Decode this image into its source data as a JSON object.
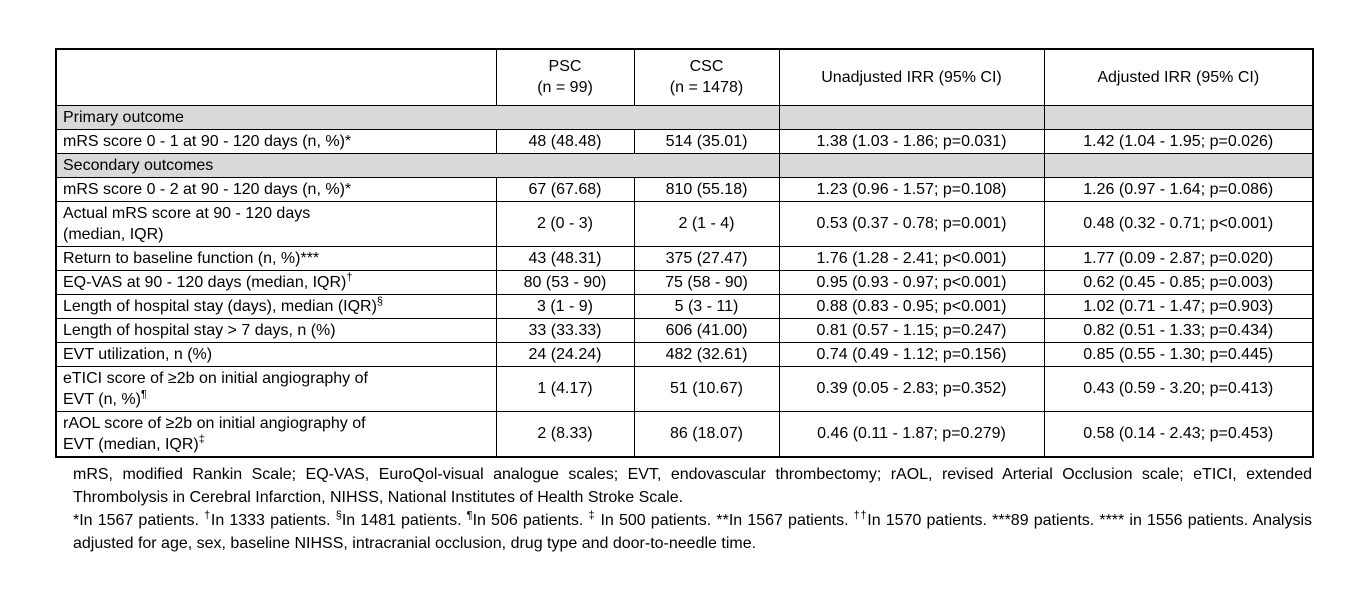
{
  "colors": {
    "section_fill": "#d9d9d9",
    "border": "#000000",
    "background": "#ffffff"
  },
  "table": {
    "header": {
      "label_col": "",
      "psc_line1": "PSC",
      "psc_line2": "(n = 99)",
      "csc_line1": "CSC",
      "csc_line2": "(n = 1478)",
      "unadjusted": "Unadjusted IRR (95% CI)",
      "adjusted": "Adjusted IRR (95% CI)"
    },
    "rows": [
      {
        "type": "section",
        "label": "Primary outcome"
      },
      {
        "type": "data",
        "label": "mRS score 0 - 1 at 90 - 120 days (n, %)*",
        "label_sup": "",
        "psc": "48 (48.48)",
        "csc": "514 (35.01)",
        "unadjusted": "1.38 (1.03 - 1.86; p=0.031)",
        "adjusted": "1.42 (1.04 - 1.95; p=0.026)"
      },
      {
        "type": "section",
        "label": "Secondary outcomes"
      },
      {
        "type": "data",
        "label": "mRS score 0 - 2 at 90 - 120 days (n, %)*",
        "label_sup": "",
        "psc": "67 (67.68)",
        "csc": "810 (55.18)",
        "unadjusted": "1.23 (0.96 - 1.57; p=0.108)",
        "adjusted": "1.26 (0.97 - 1.64; p=0.086)"
      },
      {
        "type": "data",
        "label": "Actual mRS score at 90 - 120 days\n(median, IQR)",
        "label_sup": "",
        "psc": "2 (0 - 3)",
        "csc": "2 (1 - 4)",
        "unadjusted": "0.53 (0.37 - 0.78; p=0.001)",
        "adjusted": "0.48 (0.32 - 0.71; p<0.001)"
      },
      {
        "type": "data",
        "label": "Return to baseline function (n, %)***",
        "label_sup": "",
        "psc": "43 (48.31)",
        "csc": "375 (27.47)",
        "unadjusted": "1.76 (1.28 - 2.41; p<0.001)",
        "adjusted": "1.77 (0.09 - 2.87; p=0.020)"
      },
      {
        "type": "data",
        "label": "EQ-VAS at 90 - 120 days (median, IQR)",
        "label_sup": "†",
        "psc": "80 (53 - 90)",
        "csc": "75 (58 - 90)",
        "unadjusted": "0.95 (0.93 - 0.97; p<0.001)",
        "adjusted": "0.62 (0.45 - 0.85; p=0.003)"
      },
      {
        "type": "data",
        "label": "Length of hospital stay (days), median (IQR)",
        "label_sup": "§",
        "psc": "3 (1 - 9)",
        "csc": "5 (3 - 11)",
        "unadjusted": "0.88 (0.83 - 0.95; p<0.001)",
        "adjusted": "1.02 (0.71 - 1.47; p=0.903)"
      },
      {
        "type": "data",
        "label": "Length of hospital stay > 7 days, n (%)",
        "label_sup": "",
        "psc": "33 (33.33)",
        "csc": "606 (41.00)",
        "unadjusted": "0.81 (0.57 - 1.15; p=0.247)",
        "adjusted": "0.82 (0.51 - 1.33; p=0.434)"
      },
      {
        "type": "data",
        "label": "EVT utilization, n (%)",
        "label_sup": "",
        "psc": "24 (24.24)",
        "csc": "482 (32.61)",
        "unadjusted": "0.74 (0.49 - 1.12; p=0.156)",
        "adjusted": "0.85 (0.55 - 1.30; p=0.445)"
      },
      {
        "type": "data",
        "label": "eTICI score of ≥2b on initial angiography of\nEVT (n, %)",
        "label_sup": "¶",
        "psc": "1 (4.17)",
        "csc": "51 (10.67)",
        "unadjusted": "0.39 (0.05 - 2.83; p=0.352)",
        "adjusted": "0.43 (0.59 - 3.20; p=0.413)"
      },
      {
        "type": "data",
        "label": "rAOL score of ≥2b on initial angiography of\nEVT (median, IQR)",
        "label_sup": "‡",
        "psc": "2 (8.33)",
        "csc": "86 (18.07)",
        "unadjusted": "0.46 (0.11 - 1.87; p=0.279)",
        "adjusted": "0.58 (0.14 - 2.43; p=0.453)"
      }
    ]
  },
  "footnotes": {
    "paragraphs": [
      [
        {
          "t": "mRS, modified Rankin Scale; EQ-VAS, EuroQol-visual analogue scales; EVT, endovascular thrombectomy; rAOL, revised Arterial Occlusion scale; eTICI, extended Thrombolysis in Cerebral Infarction, NIHSS, National Institutes of Health Stroke Scale."
        }
      ],
      [
        {
          "t": "*In 1567 patients. "
        },
        {
          "t": "†",
          "sup": true
        },
        {
          "t": "In 1333 patients. "
        },
        {
          "t": "§",
          "sup": true
        },
        {
          "t": "In 1481 patients. "
        },
        {
          "t": "¶",
          "sup": true
        },
        {
          "t": "In 506 patients. "
        },
        {
          "t": "‡",
          "sup": true
        },
        {
          "t": " In 500 patients. **In 1567 patients. "
        },
        {
          "t": "††",
          "sup": true
        },
        {
          "t": "In 1570 patients. ***89 patients. **** in 1556 patients. Analysis adjusted for age, sex, baseline NIHSS, intracranial occlusion, drug type and door-to-needle time."
        }
      ]
    ]
  }
}
